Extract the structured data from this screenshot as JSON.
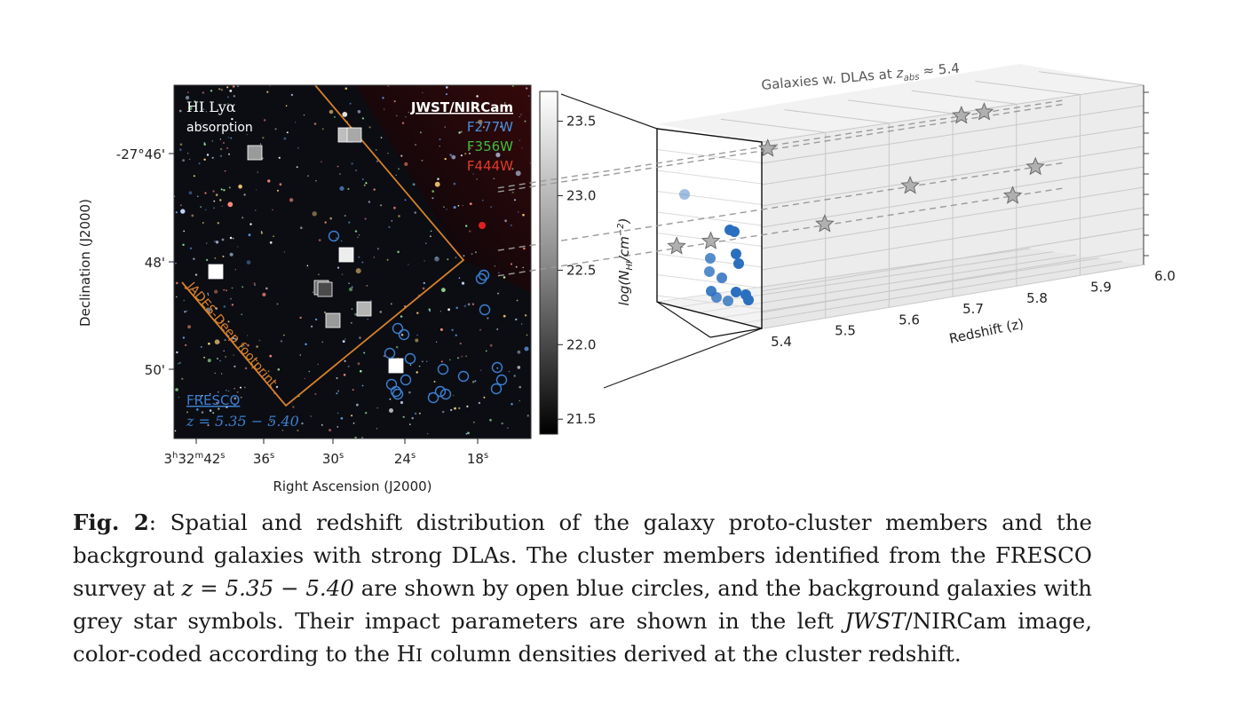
{
  "panel_left": {
    "overlay_title_line1": "HI Lyα",
    "overlay_title_line2": "absorption",
    "instrument": "JWST/NIRCam",
    "filters": [
      {
        "label": "F277W",
        "color": "#4a8fd8"
      },
      {
        "label": "F356W",
        "color": "#3fbf3f"
      },
      {
        "label": "F444W",
        "color": "#e23a2a"
      }
    ],
    "footprint_label": "JADES-Deep footprint",
    "survey_label": "FRESCO",
    "survey_redshift": "z = 5.35 − 5.40",
    "footprint_color": "#d8802a",
    "ylabel": "Declination (J2000)",
    "xlabel": "Right Ascension (J2000)",
    "y_ticks": [
      "-27°46'",
      "48'",
      "50'"
    ],
    "x_ticks": [
      {
        "main": "3",
        "sup1": "h",
        "mid": "32",
        "sup2": "m",
        "num": "42",
        "sup3": "s"
      },
      {
        "num": "36",
        "sup3": "s"
      },
      {
        "num": "30",
        "sup3": "s"
      },
      {
        "num": "24",
        "sup3": "s"
      },
      {
        "num": "18",
        "sup3": "s"
      }
    ],
    "colorbar_ticks": [
      "23.5",
      "23.0",
      "22.5",
      "22.0",
      "21.5"
    ],
    "colorbar_range": [
      21.4,
      23.7
    ]
  },
  "panel_right": {
    "title": "Galaxies w. DLAs at z_abs ≈ 5.4",
    "title_main": "Galaxies w. DLAs at ",
    "title_z": "z",
    "title_sub": "abs",
    "title_tail": " ≈ 5.4",
    "ylabel": "log(N_HI/cm^-2)",
    "xlabel": "Redshift (z)",
    "x_ticks": [
      "5.4",
      "5.5",
      "5.6",
      "5.7",
      "5.8",
      "5.9",
      "6.0"
    ]
  },
  "chart_data": {
    "type": "scatter",
    "title": "Galaxies w. DLAs at z_abs ≈ 5.4",
    "xlabel": "Redshift (z)",
    "ylabel": "log(N_HI/cm^-2)",
    "xlim": [
      5.35,
      6.0
    ],
    "x_ticks": [
      5.4,
      5.5,
      5.6,
      5.7,
      5.8,
      5.9,
      6.0
    ],
    "series": [
      {
        "name": "Galaxies w. DLAs",
        "marker": "star",
        "color": "#9a9a9a",
        "points": [
          {
            "z": 5.82,
            "height": 0.87
          },
          {
            "z": 5.86,
            "height": 0.87
          },
          {
            "z": 5.48,
            "height": 0.85
          },
          {
            "z": 5.73,
            "height": 0.55
          },
          {
            "z": 5.95,
            "height": 0.55
          },
          {
            "z": 5.32,
            "height": 0.42
          },
          {
            "z": 5.38,
            "height": 0.42
          },
          {
            "z": 5.58,
            "height": 0.42
          },
          {
            "z": 5.91,
            "height": 0.42
          }
        ]
      }
    ]
  },
  "caption": {
    "label": "Fig. 2",
    "text_1": ": Spatial and redshift distribution of the galaxy proto-cluster members and the background galaxies with strong DLAs. The cluster members identified from the FRESCO survey at ",
    "z_range": "z = 5.35 − 5.40",
    "text_2": " are shown by open blue circles, and the background galaxies with grey star symbols. Their impact parameters are shown in the left ",
    "jwst": "JWST",
    "text_3": "/NIRCam image, color-coded according to the H",
    "hi_numeral": "I",
    "text_4": " column densities derived at the cluster redshift."
  },
  "colors": {
    "sky": "#0a0c12",
    "circle": "#3b7fd1",
    "dot": "#2b6fbf",
    "star": "#a8a8a8",
    "grid": "#c8c8c8"
  }
}
